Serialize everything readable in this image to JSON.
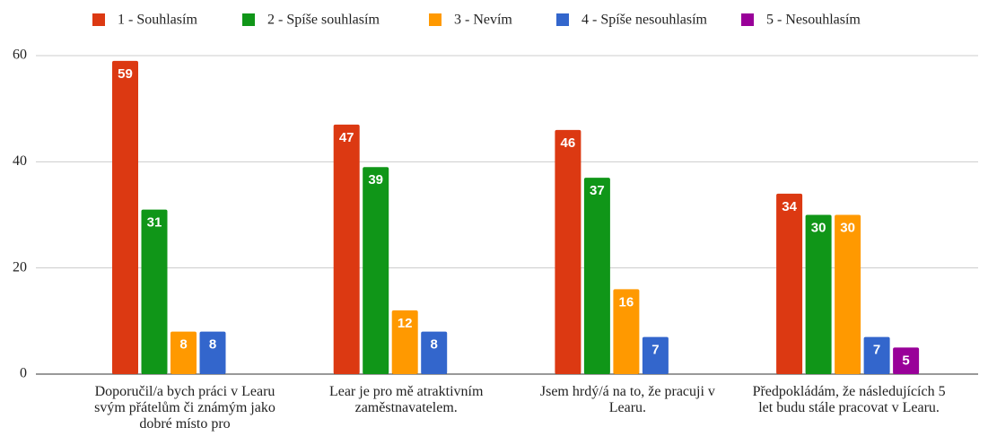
{
  "chart_data": {
    "type": "bar",
    "categories": [
      "Doporučil/a bych práci v Learu svým přátelům či známým jako dobré místo pro",
      "Lear je pro mě atraktivním zaměstnavatelem.",
      "Jsem hrdý/á na to, že pracuji v Learu.",
      "Předpokládám, že následujících 5 let budu stále pracovat v Learu."
    ],
    "series": [
      {
        "name": "1 - Souhlasím",
        "color": "#dc3912",
        "values": [
          59,
          47,
          46,
          34
        ]
      },
      {
        "name": "2 - Spíše souhlasím",
        "color": "#109618",
        "values": [
          31,
          39,
          37,
          30
        ]
      },
      {
        "name": "3 - Nevím",
        "color": "#ff9900",
        "values": [
          8,
          12,
          16,
          30
        ]
      },
      {
        "name": "4 - Spíše nesouhlasím",
        "color": "#3366cc",
        "values": [
          8,
          8,
          7,
          7
        ]
      },
      {
        "name": "5 - Nesouhlasím",
        "color": "#990099",
        "values": [
          null,
          null,
          null,
          5
        ]
      }
    ],
    "ylim": [
      0,
      60
    ],
    "yticks": [
      0,
      20,
      40,
      60
    ],
    "grid": true,
    "legend": "top"
  }
}
